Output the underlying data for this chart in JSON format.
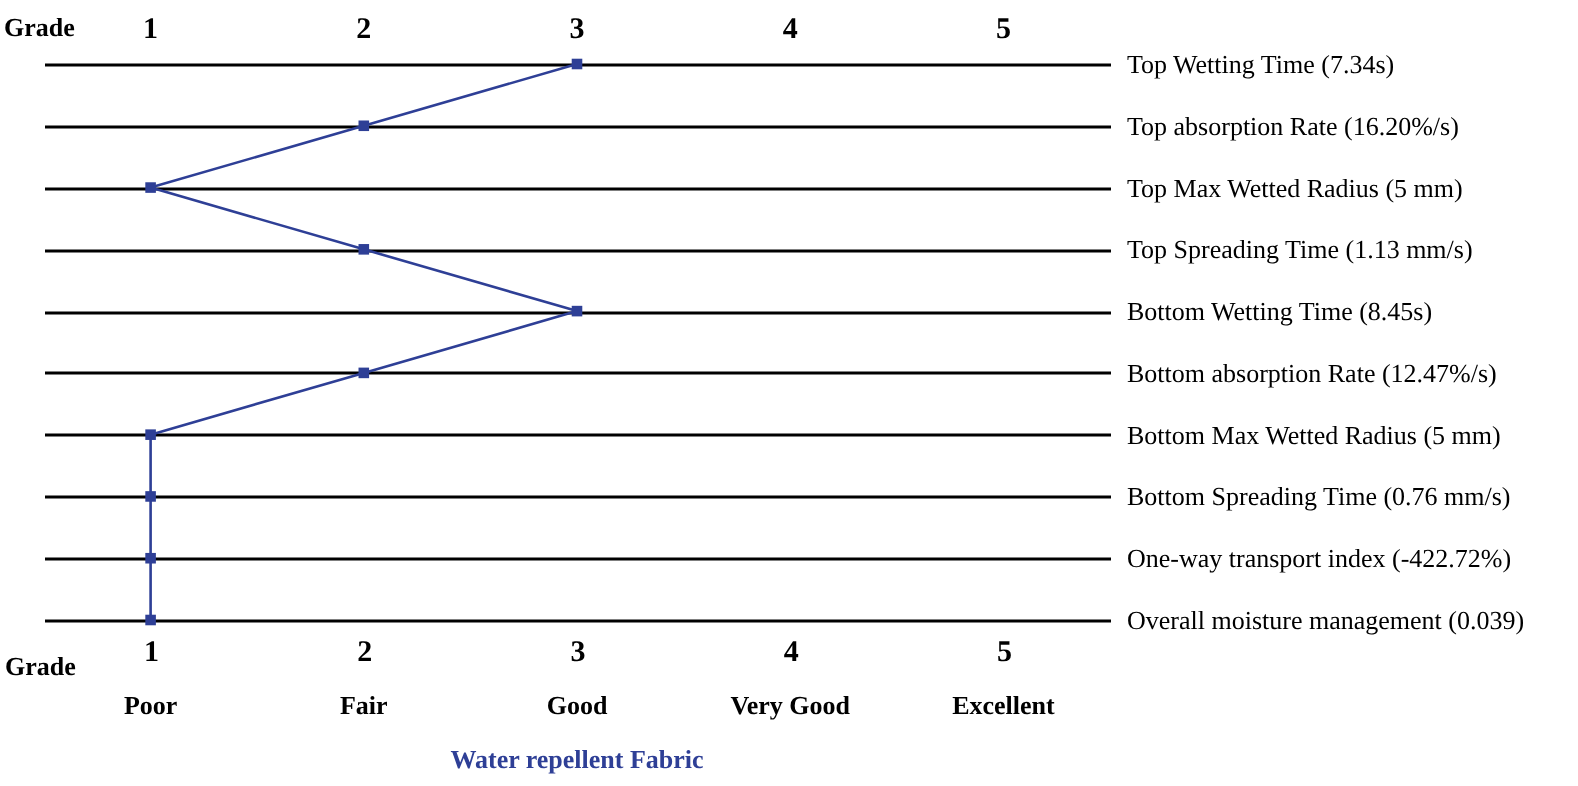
{
  "chart_data": {
    "type": "line",
    "orientation": "horizontal",
    "xlabel": "Grade",
    "x2label": "Grade",
    "categories": [
      "Top Wetting Time (7.34s)",
      "Top absorption Rate (16.20%/s)",
      "Top Max Wetted Radius (5 mm)",
      "Top Spreading Time (1.13 mm/s)",
      "Bottom Wetting Time (8.45s)",
      "Bottom absorption Rate (12.47%/s)",
      "Bottom Max Wetted Radius (5 mm)",
      "Bottom Spreading Time (0.76 mm/s)",
      "One-way transport index (-422.72%)",
      "Overall moisture management (0.039)"
    ],
    "series": [
      {
        "name": "Water repellent Fabric",
        "color": "#2e3f96",
        "values": [
          3,
          2,
          1,
          2,
          3,
          2,
          1,
          1,
          1,
          1
        ]
      }
    ],
    "xlim": [
      0.5,
      5.5
    ],
    "xticks": [
      1,
      2,
      3,
      4,
      5
    ],
    "x2lim": [
      0.5,
      5.5
    ],
    "x2ticks": [
      1,
      2,
      3,
      4,
      5
    ],
    "annotations": [
      "Poor",
      "Fair",
      "Good",
      "Very Good",
      "Excellent"
    ],
    "grid": "y",
    "marker": "square",
    "line_style": "solid"
  }
}
